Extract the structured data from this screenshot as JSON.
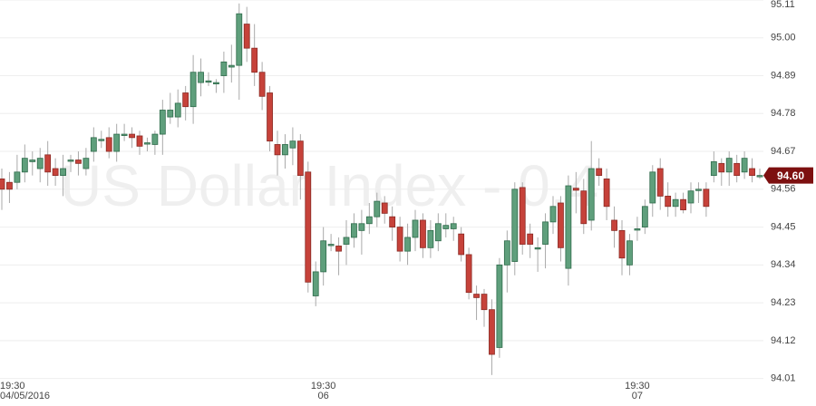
{
  "chart_data": {
    "type": "candlestick",
    "watermark": "US Dollar Index - 0.4",
    "categories": [
      "19:30",
      null,
      null,
      null,
      null,
      null,
      null,
      null,
      null,
      null,
      null,
      null,
      null,
      null,
      null,
      null,
      null,
      null,
      null,
      null,
      null,
      null,
      null,
      null,
      null,
      null,
      null,
      null,
      null,
      null,
      null,
      null,
      null,
      null,
      null,
      null,
      null,
      null,
      null,
      null,
      null,
      null,
      "19:30",
      null,
      null,
      null,
      null,
      null,
      null,
      null,
      null,
      null,
      null,
      null,
      null,
      null,
      null,
      null,
      null,
      null,
      null,
      null,
      null,
      null,
      null,
      null,
      null,
      null,
      null,
      null,
      null,
      null,
      null,
      null,
      null,
      null,
      null,
      null,
      null,
      null,
      null,
      null,
      null,
      "19:30",
      null,
      null,
      null,
      null,
      null,
      null,
      null,
      null,
      null,
      null,
      null,
      null,
      null,
      null,
      null,
      null
    ],
    "dates": [
      "04/05/2016",
      null,
      null,
      null,
      null,
      null,
      null,
      null,
      null,
      null,
      null,
      null,
      null,
      null,
      null,
      null,
      null,
      null,
      null,
      null,
      null,
      null,
      null,
      null,
      null,
      null,
      null,
      null,
      null,
      null,
      null,
      null,
      null,
      null,
      null,
      null,
      null,
      null,
      null,
      null,
      null,
      null,
      "06",
      null,
      null,
      null,
      null,
      null,
      null,
      null,
      null,
      null,
      null,
      null,
      null,
      null,
      null,
      null,
      null,
      null,
      null,
      null,
      null,
      null,
      null,
      null,
      null,
      null,
      null,
      null,
      null,
      null,
      null,
      null,
      null,
      null,
      null,
      null,
      null,
      null,
      null,
      null,
      null,
      "07",
      null,
      null,
      null,
      null,
      null,
      null,
      null,
      null,
      null,
      null,
      null,
      null,
      null,
      null,
      null,
      null
    ],
    "open": [
      94.59,
      94.58,
      94.58,
      94.61,
      94.64,
      94.62,
      94.66,
      94.62,
      94.6,
      94.645,
      94.645,
      94.62,
      94.67,
      94.705,
      94.71,
      94.67,
      94.72,
      94.72,
      94.715,
      94.695,
      94.69,
      94.72,
      94.77,
      94.77,
      94.84,
      94.8,
      94.87,
      94.875,
      94.87,
      94.89,
      94.915,
      94.92,
      95.04,
      94.97,
      94.9,
      94.84,
      94.69,
      94.66,
      94.68,
      94.7,
      94.61,
      94.25,
      94.32,
      94.4,
      94.395,
      94.4,
      94.42,
      94.44,
      94.46,
      94.48,
      94.52,
      94.48,
      94.45,
      94.38,
      94.42,
      94.47,
      94.39,
      94.41,
      94.445,
      94.445,
      94.43,
      94.37,
      94.255,
      94.255,
      94.21,
      94.1,
      94.34,
      94.35,
      94.565,
      94.43,
      94.39,
      94.4,
      94.465,
      94.52,
      94.33,
      94.563,
      94.555,
      94.47,
      94.62,
      94.59,
      94.47,
      94.44,
      94.34,
      94.445,
      94.45,
      94.52,
      94.62,
      94.54,
      94.51,
      94.53,
      94.52,
      94.56,
      94.56,
      94.6,
      94.635,
      94.61,
      94.635,
      94.61,
      94.62,
      94.6
    ],
    "high": [
      94.62,
      94.61,
      94.66,
      94.69,
      94.67,
      94.68,
      94.7,
      94.65,
      94.66,
      94.66,
      94.67,
      94.68,
      94.74,
      94.73,
      94.74,
      94.75,
      94.75,
      94.74,
      94.73,
      94.71,
      94.73,
      94.82,
      94.84,
      94.85,
      94.86,
      94.95,
      94.94,
      94.9,
      94.88,
      94.96,
      94.98,
      95.1,
      95.09,
      95.04,
      94.93,
      94.86,
      94.73,
      94.72,
      94.74,
      94.72,
      94.64,
      94.35,
      94.45,
      94.43,
      94.42,
      94.47,
      94.49,
      94.5,
      94.52,
      94.55,
      94.54,
      94.51,
      94.48,
      94.46,
      94.5,
      94.49,
      94.47,
      94.49,
      94.49,
      94.48,
      94.45,
      94.39,
      94.28,
      94.27,
      94.24,
      94.36,
      94.44,
      94.58,
      94.58,
      94.46,
      94.42,
      94.49,
      94.54,
      94.54,
      94.6,
      94.61,
      94.59,
      94.7,
      94.65,
      94.62,
      94.51,
      94.47,
      94.43,
      94.48,
      94.53,
      94.63,
      94.65,
      94.58,
      94.55,
      94.55,
      94.58,
      94.58,
      94.58,
      94.67,
      94.65,
      94.67,
      94.66,
      94.67,
      94.65,
      94.62
    ],
    "low": [
      94.5,
      94.52,
      94.56,
      94.58,
      94.6,
      94.58,
      94.57,
      94.57,
      94.54,
      94.61,
      94.6,
      94.6,
      94.64,
      94.68,
      94.65,
      94.64,
      94.7,
      94.68,
      94.66,
      94.67,
      94.66,
      94.66,
      94.75,
      94.74,
      94.76,
      94.75,
      94.83,
      94.86,
      94.84,
      94.84,
      94.87,
      94.82,
      94.93,
      94.86,
      94.79,
      94.67,
      94.6,
      94.62,
      94.63,
      94.53,
      94.26,
      94.22,
      94.28,
      94.38,
      94.31,
      94.34,
      94.39,
      94.37,
      94.43,
      94.45,
      94.46,
      94.41,
      94.35,
      94.34,
      94.38,
      94.36,
      94.36,
      94.38,
      94.42,
      94.41,
      94.35,
      94.24,
      94.18,
      94.16,
      94.02,
      94.07,
      94.26,
      94.31,
      94.37,
      94.36,
      94.32,
      94.33,
      94.43,
      94.35,
      94.28,
      94.49,
      94.43,
      94.44,
      94.57,
      94.47,
      94.39,
      94.31,
      94.31,
      94.41,
      94.43,
      94.48,
      94.5,
      94.48,
      94.48,
      94.49,
      94.49,
      94.52,
      94.48,
      94.58,
      94.57,
      94.57,
      94.58,
      94.59,
      94.58,
      94.59
    ],
    "close": [
      94.56,
      94.56,
      94.61,
      94.65,
      94.645,
      94.65,
      94.61,
      94.6,
      94.62,
      94.645,
      94.635,
      94.65,
      94.71,
      94.705,
      94.67,
      94.72,
      94.72,
      94.71,
      94.685,
      94.695,
      94.72,
      94.79,
      94.79,
      94.81,
      94.8,
      94.9,
      94.9,
      94.875,
      94.87,
      94.93,
      94.92,
      95.07,
      94.97,
      94.9,
      94.83,
      94.7,
      94.66,
      94.69,
      94.7,
      94.6,
      94.29,
      94.32,
      94.41,
      94.4,
      94.38,
      94.42,
      94.46,
      94.46,
      94.48,
      94.525,
      94.49,
      94.45,
      94.38,
      94.42,
      94.47,
      94.39,
      94.44,
      94.46,
      94.455,
      94.46,
      94.37,
      94.26,
      94.245,
      94.21,
      94.08,
      94.34,
      94.41,
      94.56,
      94.4,
      94.4,
      94.39,
      94.465,
      94.51,
      94.39,
      94.57,
      94.557,
      94.46,
      94.62,
      94.6,
      94.51,
      94.44,
      94.36,
      94.41,
      94.445,
      94.51,
      94.61,
      94.54,
      94.51,
      94.53,
      94.5,
      94.555,
      94.56,
      94.51,
      94.64,
      94.61,
      94.65,
      94.6,
      94.65,
      94.6,
      94.6
    ],
    "up_color": "#5f9f7c",
    "down_color": "#c6423a",
    "last_price": {
      "value": 94.6,
      "label": "94.60"
    },
    "last_price_color": "#7d1010",
    "ylim": [
      93.98,
      95.11
    ],
    "yticks": [
      94.01,
      94.12,
      94.23,
      94.34,
      94.45,
      94.56,
      94.67,
      94.78,
      94.89,
      {
        "value": 95,
        "label": "95.00"
      },
      95.11
    ],
    "grid": true
  }
}
